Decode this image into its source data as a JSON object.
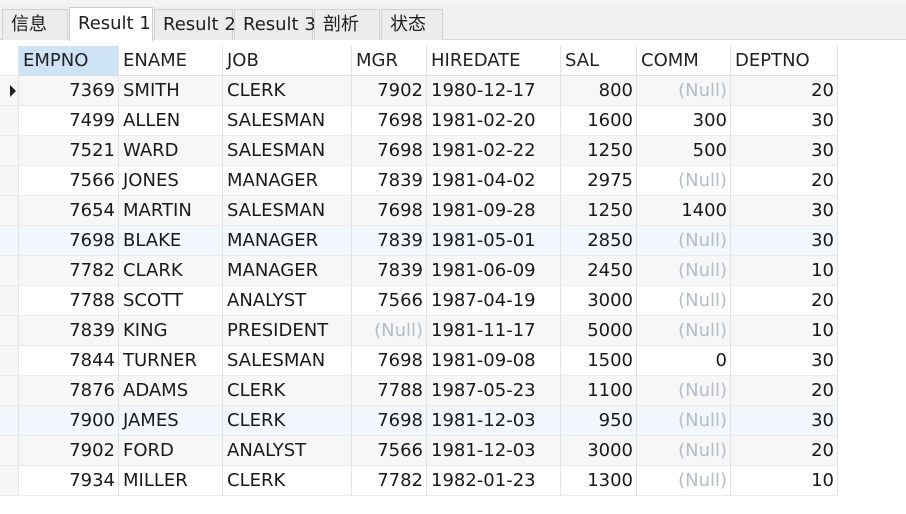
{
  "tabs": [
    {
      "label": "信息",
      "active": false
    },
    {
      "label": "Result 1",
      "active": true
    },
    {
      "label": "Result 2",
      "active": false
    },
    {
      "label": "Result 3",
      "active": false
    },
    {
      "label": "剖析",
      "active": false
    },
    {
      "label": "状态",
      "active": false
    }
  ],
  "null_text": "(Null)",
  "columns": [
    "EMPNO",
    "ENAME",
    "JOB",
    "MGR",
    "HIREDATE",
    "SAL",
    "COMM",
    "DEPTNO"
  ],
  "rows": [
    [
      "7369",
      "SMITH",
      "CLERK",
      "7902",
      "1980-12-17",
      "800",
      null,
      "20"
    ],
    [
      "7499",
      "ALLEN",
      "SALESMAN",
      "7698",
      "1981-02-20",
      "1600",
      "300",
      "30"
    ],
    [
      "7521",
      "WARD",
      "SALESMAN",
      "7698",
      "1981-02-22",
      "1250",
      "500",
      "30"
    ],
    [
      "7566",
      "JONES",
      "MANAGER",
      "7839",
      "1981-04-02",
      "2975",
      null,
      "20"
    ],
    [
      "7654",
      "MARTIN",
      "SALESMAN",
      "7698",
      "1981-09-28",
      "1250",
      "1400",
      "30"
    ],
    [
      "7698",
      "BLAKE",
      "MANAGER",
      "7839",
      "1981-05-01",
      "2850",
      null,
      "30"
    ],
    [
      "7782",
      "CLARK",
      "MANAGER",
      "7839",
      "1981-06-09",
      "2450",
      null,
      "10"
    ],
    [
      "7788",
      "SCOTT",
      "ANALYST",
      "7566",
      "1987-04-19",
      "3000",
      null,
      "20"
    ],
    [
      "7839",
      "KING",
      "PRESIDENT",
      null,
      "1981-11-17",
      "5000",
      null,
      "10"
    ],
    [
      "7844",
      "TURNER",
      "SALESMAN",
      "7698",
      "1981-09-08",
      "1500",
      "0",
      "30"
    ],
    [
      "7876",
      "ADAMS",
      "CLERK",
      "7788",
      "1987-05-23",
      "1100",
      null,
      "20"
    ],
    [
      "7900",
      "JAMES",
      "CLERK",
      "7698",
      "1981-12-03",
      "950",
      null,
      "30"
    ],
    [
      "7902",
      "FORD",
      "ANALYST",
      "7566",
      "1981-12-03",
      "3000",
      null,
      "20"
    ],
    [
      "7934",
      "MILLER",
      "CLERK",
      "7782",
      "1982-01-23",
      "1300",
      null,
      "10"
    ]
  ],
  "current_row": 0,
  "colors": {
    "null_text": "#b6bcc8",
    "selected_header": "#cfe3f7",
    "row_highlight": "#f1f7fd"
  }
}
